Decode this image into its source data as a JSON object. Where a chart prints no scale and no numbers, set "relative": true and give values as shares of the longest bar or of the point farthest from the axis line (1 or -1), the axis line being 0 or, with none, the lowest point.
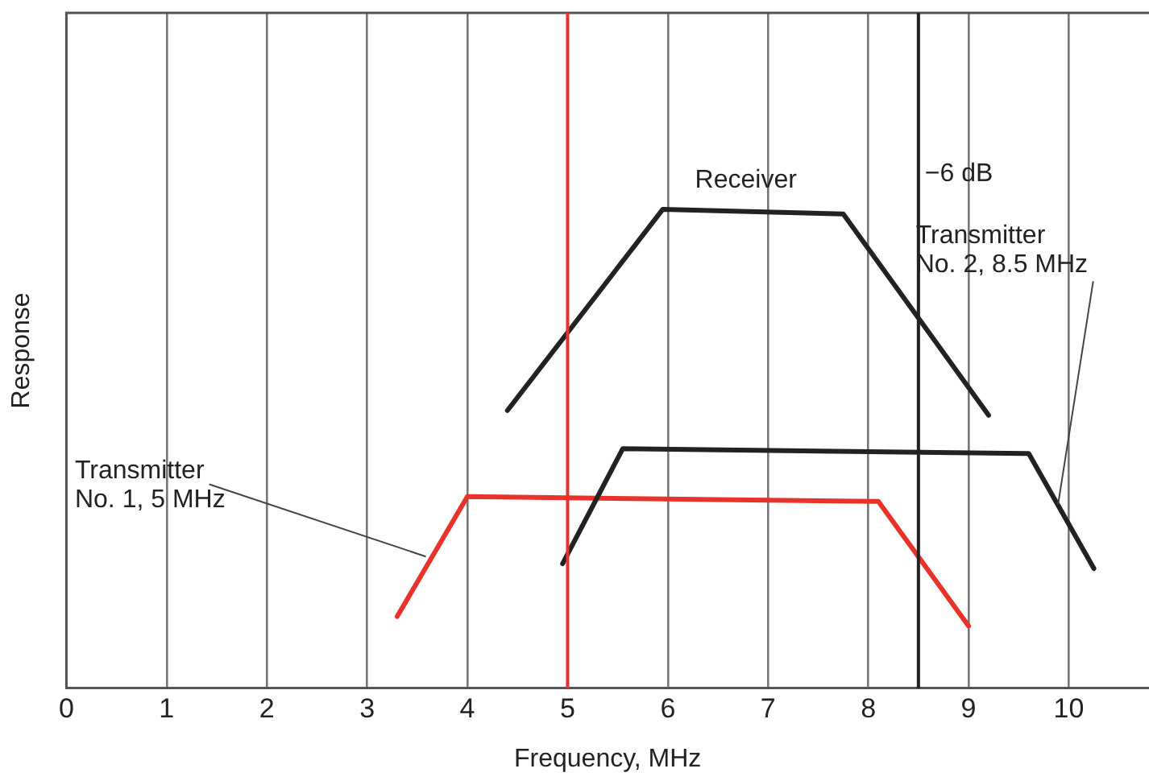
{
  "chart_data": {
    "type": "line",
    "xlabel": "Frequency, MHz",
    "ylabel": "Response",
    "relative": true,
    "xlim": [
      0,
      10.8
    ],
    "xticks": [
      0,
      1,
      2,
      3,
      4,
      5,
      6,
      7,
      8,
      9,
      10
    ],
    "grid": "x",
    "legend": false,
    "marker": "none",
    "line_style": "solid",
    "series": [
      {
        "name": "Receiver",
        "color": "#222222",
        "x": [
          4.4,
          5.95,
          7.75,
          9.2
        ],
        "values": [
          0.58,
          1,
          0.99,
          0.57
        ]
      },
      {
        "name": "Transmitter No. 2, 8.5 MHz",
        "color": "#222222",
        "x": [
          4.95,
          5.55,
          9.6,
          10.25
        ],
        "values": [
          0.26,
          0.5,
          0.49,
          0.25
        ]
      },
      {
        "name": "Transmitter No. 1, 5 MHz",
        "color": "#e8332a",
        "x": [
          3.3,
          4.0,
          8.1,
          9.0
        ],
        "values": [
          0.15,
          0.4,
          0.39,
          0.13
        ]
      }
    ],
    "ref_lines": [
      {
        "axis": "x",
        "value": 5,
        "color": "#e8332a"
      },
      {
        "axis": "x",
        "value": 8.5,
        "label": "−6 dB",
        "color": "#222222"
      }
    ]
  }
}
